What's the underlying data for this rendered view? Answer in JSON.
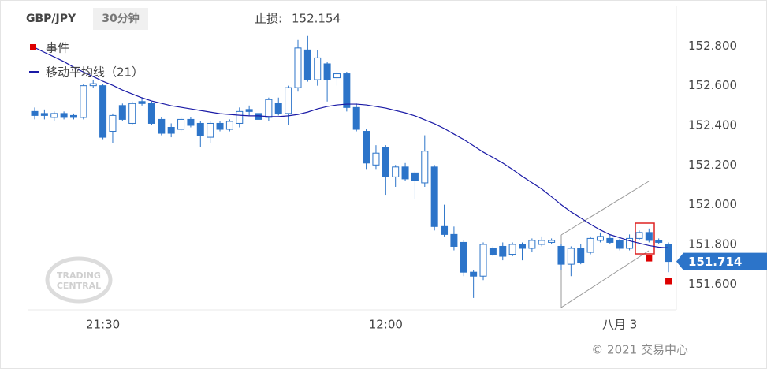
{
  "chart_data": {
    "type": "candlestick",
    "symbol": "GBP/JPY",
    "timeframe": "30分钟",
    "stop_loss_label": "止损:",
    "stop_loss": 152.154,
    "categories": [
      null,
      null,
      null,
      null,
      null,
      null,
      null,
      "21:30",
      null,
      null,
      null,
      null,
      null,
      null,
      null,
      null,
      null,
      null,
      null,
      null,
      null,
      null,
      null,
      null,
      null,
      null,
      null,
      null,
      null,
      null,
      null,
      null,
      null,
      null,
      null,
      null,
      "12:00",
      null,
      null,
      null,
      null,
      null,
      null,
      null,
      null,
      null,
      null,
      null,
      null,
      null,
      null,
      null,
      null,
      null,
      null,
      null,
      null,
      null,
      null,
      null,
      "八月 3",
      null,
      null,
      null,
      null,
      null
    ],
    "open": [
      152.47,
      152.46,
      152.44,
      152.46,
      152.45,
      152.44,
      152.6,
      152.6,
      152.37,
      152.5,
      152.41,
      152.52,
      152.51,
      152.43,
      152.39,
      152.38,
      152.43,
      152.41,
      152.34,
      152.41,
      152.38,
      152.41,
      152.48,
      152.46,
      152.44,
      152.51,
      152.46,
      152.59,
      152.78,
      152.63,
      152.71,
      152.64,
      152.66,
      152.49,
      152.37,
      152.2,
      152.29,
      152.14,
      152.19,
      152.16,
      152.11,
      152.19,
      151.89,
      151.85,
      151.81,
      151.66,
      151.64,
      151.78,
      151.79,
      151.75,
      151.8,
      151.78,
      151.8,
      151.81,
      151.79,
      151.7,
      151.78,
      151.76,
      151.82,
      151.83,
      151.82,
      151.78,
      151.83,
      151.86,
      151.82,
      151.8
    ],
    "high": [
      152.49,
      152.48,
      152.47,
      152.47,
      152.46,
      152.61,
      152.63,
      152.61,
      152.46,
      152.51,
      152.52,
      152.54,
      152.52,
      152.44,
      152.41,
      152.44,
      152.44,
      152.42,
      152.42,
      152.42,
      152.43,
      152.49,
      152.5,
      152.48,
      152.54,
      152.54,
      152.6,
      152.83,
      152.85,
      152.78,
      152.72,
      152.67,
      152.67,
      152.51,
      152.38,
      152.3,
      152.3,
      152.2,
      152.21,
      152.17,
      152.35,
      152.2,
      152.0,
      151.89,
      151.82,
      151.67,
      151.81,
      151.79,
      151.81,
      151.81,
      151.81,
      151.83,
      151.84,
      151.83,
      151.8,
      151.79,
      151.8,
      151.84,
      151.86,
      151.85,
      151.83,
      151.85,
      151.87,
      151.88,
      151.83,
      151.81
    ],
    "low": [
      152.43,
      152.43,
      152.42,
      152.43,
      152.43,
      152.43,
      152.59,
      152.33,
      152.31,
      152.42,
      152.4,
      152.5,
      152.4,
      152.35,
      152.34,
      152.37,
      152.39,
      152.29,
      152.31,
      152.37,
      152.37,
      152.39,
      152.45,
      152.42,
      152.42,
      152.45,
      152.4,
      152.57,
      152.62,
      152.6,
      152.52,
      152.6,
      152.47,
      152.37,
      152.18,
      152.18,
      152.05,
      152.09,
      152.12,
      152.03,
      152.09,
      151.87,
      151.84,
      151.77,
      151.64,
      151.53,
      151.62,
      151.74,
      151.72,
      151.74,
      151.72,
      151.76,
      151.79,
      151.8,
      151.67,
      151.64,
      151.7,
      151.75,
      151.81,
      151.8,
      151.77,
      151.77,
      151.82,
      151.81,
      151.8,
      151.66
    ],
    "close": [
      152.45,
      152.45,
      152.46,
      152.44,
      152.44,
      152.6,
      152.61,
      152.34,
      152.45,
      152.43,
      152.51,
      152.51,
      152.41,
      152.36,
      152.36,
      152.43,
      152.4,
      152.35,
      152.41,
      152.38,
      152.42,
      152.47,
      152.47,
      152.43,
      152.53,
      152.46,
      152.59,
      152.79,
      152.63,
      152.74,
      152.63,
      152.66,
      152.49,
      152.38,
      152.21,
      152.26,
      152.14,
      152.19,
      152.13,
      152.12,
      152.27,
      151.89,
      151.85,
      151.79,
      151.66,
      151.64,
      151.8,
      151.75,
      151.74,
      151.8,
      151.78,
      151.82,
      151.82,
      151.82,
      151.7,
      151.78,
      151.71,
      151.83,
      151.84,
      151.81,
      151.78,
      151.83,
      151.86,
      151.82,
      151.81,
      151.714
    ],
    "up_color": "#ffffff",
    "down_color": "#2c74c9",
    "ma": {
      "name": "移动平均线（21）",
      "color": "#1a1aa6",
      "values": [
        152.792,
        152.768,
        152.745,
        152.721,
        152.693,
        152.669,
        152.646,
        152.622,
        152.602,
        152.578,
        152.558,
        152.539,
        152.523,
        152.511,
        152.499,
        152.491,
        152.483,
        152.475,
        152.467,
        152.459,
        152.455,
        152.451,
        152.448,
        152.448,
        152.444,
        152.444,
        152.448,
        152.455,
        152.467,
        152.483,
        152.495,
        152.503,
        152.507,
        152.507,
        152.503,
        152.495,
        152.487,
        152.475,
        152.463,
        152.448,
        152.428,
        152.408,
        152.384,
        152.356,
        152.329,
        152.297,
        152.265,
        152.238,
        152.21,
        152.178,
        152.143,
        152.111,
        152.079,
        152.04,
        152.0,
        151.964,
        151.933,
        151.901,
        151.873,
        151.849,
        151.834,
        151.818,
        151.806,
        151.794,
        151.786,
        151.782
      ]
    },
    "events": {
      "name": "事件",
      "color": "#dd0000",
      "values": [
        null,
        null,
        null,
        null,
        null,
        null,
        null,
        null,
        null,
        null,
        null,
        null,
        null,
        null,
        null,
        null,
        null,
        null,
        null,
        null,
        null,
        null,
        null,
        null,
        null,
        null,
        null,
        null,
        null,
        null,
        null,
        null,
        null,
        null,
        null,
        null,
        null,
        null,
        null,
        null,
        null,
        null,
        null,
        null,
        null,
        null,
        null,
        null,
        null,
        null,
        null,
        null,
        null,
        null,
        null,
        null,
        null,
        null,
        null,
        null,
        null,
        null,
        null,
        151.73,
        null,
        151.615
      ]
    },
    "last_price": 151.714,
    "last_color": "#2c74c9",
    "ylim": [
      151.47,
      153.0
    ],
    "yticks": [
      {
        "value": 151.6,
        "label": "151.600"
      },
      {
        "value": 151.8,
        "label": "151.800"
      },
      {
        "value": 152.0,
        "label": "152.000"
      },
      {
        "value": 152.2,
        "label": "152.200"
      },
      {
        "value": 152.4,
        "label": "152.400"
      },
      {
        "value": 152.6,
        "label": "152.600"
      },
      {
        "value": 152.8,
        "label": "152.800"
      }
    ],
    "watermark": [
      "TRADING",
      "CENTRAL"
    ],
    "copyright": "© 2021 交易中心"
  }
}
